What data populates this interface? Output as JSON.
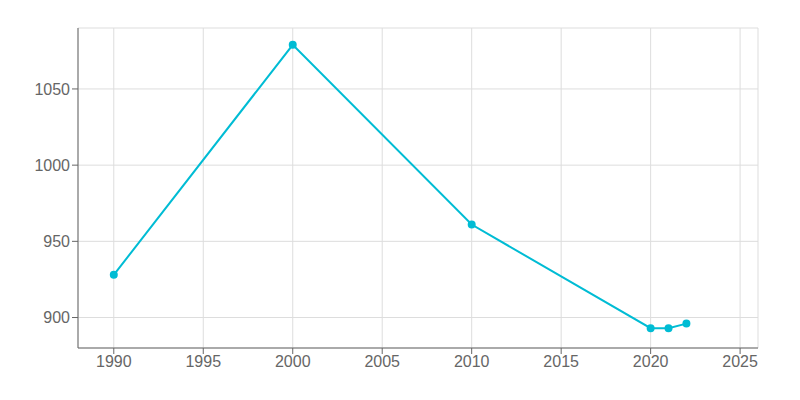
{
  "chart_data": {
    "type": "line",
    "x": [
      1990,
      2000,
      2010,
      2020,
      2021,
      2022
    ],
    "values": [
      928,
      1079,
      961,
      893,
      893,
      896
    ],
    "color": "#00BCD4",
    "marker": "circle",
    "xlim": [
      1988,
      2026
    ],
    "ylim": [
      880,
      1090
    ],
    "xticks": [
      1990,
      1995,
      2000,
      2005,
      2010,
      2015,
      2020,
      2025
    ],
    "yticks": [
      900,
      950,
      1000,
      1050
    ],
    "grid": true
  }
}
